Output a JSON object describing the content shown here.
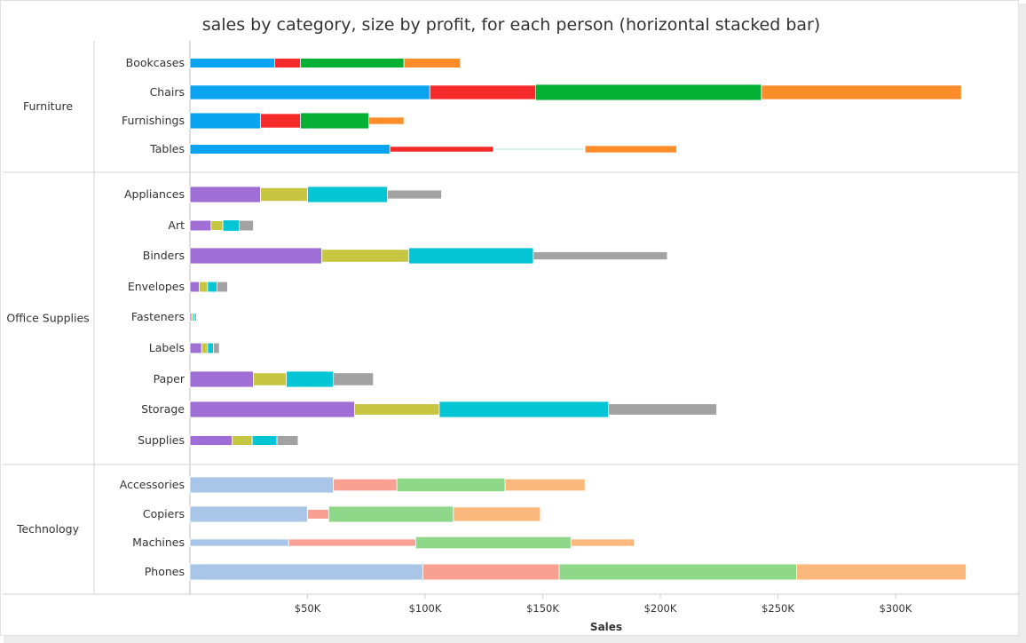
{
  "chart_data": {
    "type": "bar",
    "orientation": "horizontal",
    "stacked": true,
    "title": "sales by category, size by profit, for each person (horizontal stacked bar)",
    "xlabel": "Sales",
    "xlim": [
      0,
      330000
    ],
    "x_ticks": [
      50000,
      100000,
      150000,
      200000,
      250000,
      300000
    ],
    "x_tick_labels": [
      "$50K",
      "$100K",
      "$150K",
      "$200K",
      "$250K",
      "$300K"
    ],
    "groups": [
      {
        "name": "Furniture",
        "colors": [
          "#0aa4f0",
          "#f52a2a",
          "#05b035",
          "#fb8c2a"
        ],
        "rows": [
          {
            "label": "Bookcases",
            "values": [
              36000,
              11000,
              44000,
              24000
            ],
            "size": [
              0.6,
              0.6,
              0.6,
              0.6
            ]
          },
          {
            "label": "Chairs",
            "values": [
              102000,
              45000,
              96000,
              85000
            ],
            "size": [
              0.9,
              0.9,
              1,
              0.9
            ]
          },
          {
            "label": "Furnishings",
            "values": [
              30000,
              17000,
              29000,
              15000
            ],
            "size": [
              1,
              0.9,
              1,
              0.45
            ]
          },
          {
            "label": "Tables",
            "values": [
              85000,
              44000,
              39000,
              39000
            ],
            "size": [
              0.6,
              0.35,
              0.06,
              0.45
            ]
          }
        ]
      },
      {
        "name": "Office Supplies",
        "colors": [
          "#a06fd6",
          "#c7c642",
          "#06c6d6",
          "#a2a2a2"
        ],
        "rows": [
          {
            "label": "Appliances",
            "values": [
              30000,
              20000,
              34000,
              23000
            ],
            "size": [
              1,
              0.85,
              1,
              0.55
            ]
          },
          {
            "label": "Art",
            "values": [
              9000,
              5000,
              7000,
              6000
            ],
            "size": [
              0.65,
              0.6,
              0.7,
              0.65
            ]
          },
          {
            "label": "Binders",
            "values": [
              56000,
              37000,
              53000,
              57000
            ],
            "size": [
              1,
              0.8,
              1,
              0.5
            ]
          },
          {
            "label": "Envelopes",
            "values": [
              4000,
              3500,
              4000,
              4500
            ],
            "size": [
              0.65,
              0.65,
              0.65,
              0.65
            ]
          },
          {
            "label": "Fasteners",
            "values": [
              700,
              700,
              700,
              700
            ],
            "size": [
              0.5,
              0.5,
              0.5,
              0.5
            ]
          },
          {
            "label": "Labels",
            "values": [
              5000,
              2500,
              2500,
              2500
            ],
            "size": [
              0.65,
              0.65,
              0.65,
              0.65
            ]
          },
          {
            "label": "Paper",
            "values": [
              27000,
              14000,
              20000,
              17000
            ],
            "size": [
              1,
              0.8,
              1,
              0.8
            ]
          },
          {
            "label": "Storage",
            "values": [
              70000,
              36000,
              72000,
              46000
            ],
            "size": [
              1,
              0.7,
              1,
              0.7
            ]
          },
          {
            "label": "Supplies",
            "values": [
              18000,
              8500,
              10500,
              9000
            ],
            "size": [
              0.6,
              0.6,
              0.6,
              0.6
            ]
          }
        ]
      },
      {
        "name": "Technology",
        "colors": [
          "#a9c5e8",
          "#f8a091",
          "#8fd88a",
          "#fbb87d"
        ],
        "rows": [
          {
            "label": "Accessories",
            "values": [
              61000,
              27000,
              46000,
              34000
            ],
            "size": [
              1,
              0.75,
              0.85,
              0.75
            ]
          },
          {
            "label": "Copiers",
            "values": [
              50000,
              9000,
              53000,
              37000
            ],
            "size": [
              1,
              0.6,
              1,
              0.9
            ]
          },
          {
            "label": "Machines",
            "values": [
              42000,
              54000,
              66000,
              27000
            ],
            "size": [
              0.45,
              0.45,
              0.75,
              0.45
            ]
          },
          {
            "label": "Phones",
            "values": [
              99000,
              58000,
              101000,
              72000
            ],
            "size": [
              1,
              1,
              1,
              1
            ]
          }
        ]
      }
    ]
  }
}
